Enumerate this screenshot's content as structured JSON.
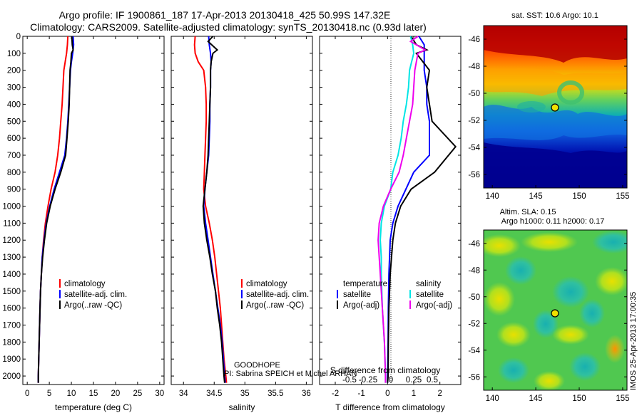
{
  "titles": {
    "line1": "Argo profile: IF 1900861_187 17-Apr-2013 20130418_425 50.99S 147.32E",
    "line2": "Climatology: CARS2009. Satellite-adjusted climatology: synTS_20130418.nc (0.93d later)"
  },
  "depth_ticks": [
    0,
    100,
    200,
    300,
    400,
    500,
    600,
    700,
    800,
    900,
    1000,
    1100,
    1200,
    1300,
    1400,
    1500,
    1600,
    1700,
    1800,
    1900,
    2000
  ],
  "panels": {
    "temperature": {
      "xlabel": "temperature (deg C)",
      "xticks": [
        0,
        5,
        10,
        15,
        20,
        25,
        30
      ],
      "legend": [
        "climatology",
        "satellite-adj. clim.",
        "Argo(..raw -QC)"
      ]
    },
    "salinity": {
      "xlabel": "salinity",
      "xticks": [
        "34",
        "34.5",
        "35",
        "35.5",
        "36"
      ],
      "legend": [
        "climatology",
        "satellite-adj. clim.",
        "Argo(..raw -QC)"
      ],
      "note1": "GOODHOPE",
      "note2": "PI: Sabrina SPEICH et Michel ARHAN"
    },
    "difference": {
      "xlabel": "T difference from climatology",
      "xticks": [
        "-2",
        "-1",
        "0",
        "1",
        "2"
      ],
      "xlabel_s": "S difference from climatology",
      "xticks_s": [
        "-0.5",
        "-0.25",
        "0",
        "0.25",
        "0.5"
      ],
      "legend_temp_header": "temperature",
      "legend_temp": [
        "satellite",
        "Argo(-adj)"
      ],
      "legend_sal_header": "salinity",
      "legend_sal": [
        "satellite",
        "Argo(-adj)"
      ]
    }
  },
  "maps": {
    "sst_title": "sat. SST: 10.6 Argo: 10.1",
    "sla_title1": "Altim. SLA: 0.15",
    "sla_title2": "Argo h1000: 0.11 h2000: 0.17",
    "lat_ticks": [
      "-46",
      "-48",
      "-50",
      "-52",
      "-54",
      "-56"
    ],
    "lon_ticks": [
      "140",
      "145",
      "150",
      "155"
    ],
    "marker": {
      "lon": 147.32,
      "lat": -50.99
    }
  },
  "stamp": "IMOS 25-Apr-2013 17:00:35",
  "colors": {
    "climatology": "#ff0000",
    "satellite": "#0000ff",
    "argo": "#000000",
    "sal_satellite": "#00e5e5",
    "sal_argo": "#ee00ee"
  },
  "chart_data": [
    {
      "type": "line",
      "xlabel": "temperature (deg C)",
      "ylabel": "",
      "xlim": [
        -1,
        31
      ],
      "ylim": [
        2050,
        0
      ],
      "series": [
        {
          "name": "climatology",
          "points": [
            [
              9.2,
              0
            ],
            [
              9.1,
              50
            ],
            [
              8.9,
              100
            ],
            [
              8.6,
              150
            ],
            [
              8.3,
              200
            ],
            [
              8.1,
              300
            ],
            [
              7.9,
              400
            ],
            [
              7.6,
              500
            ],
            [
              7.3,
              600
            ],
            [
              6.9,
              700
            ],
            [
              6.3,
              800
            ],
            [
              5.4,
              900
            ],
            [
              4.7,
              1000
            ],
            [
              4.1,
              1100
            ],
            [
              3.7,
              1200
            ],
            [
              3.4,
              1300
            ],
            [
              3.2,
              1400
            ],
            [
              3.0,
              1500
            ],
            [
              2.9,
              1600
            ],
            [
              2.8,
              1700
            ],
            [
              2.7,
              1800
            ],
            [
              2.6,
              1900
            ],
            [
              2.5,
              2000
            ],
            [
              2.5,
              2040
            ]
          ]
        },
        {
          "name": "satellite-adj. clim.",
          "points": [
            [
              10.4,
              0
            ],
            [
              10.5,
              50
            ],
            [
              10.3,
              100
            ],
            [
              10.0,
              150
            ],
            [
              9.8,
              200
            ],
            [
              9.6,
              300
            ],
            [
              9.4,
              400
            ],
            [
              9.2,
              500
            ],
            [
              8.9,
              600
            ],
            [
              8.5,
              700
            ],
            [
              7.3,
              800
            ],
            [
              6.1,
              900
            ],
            [
              5.1,
              1000
            ],
            [
              4.3,
              1100
            ],
            [
              3.8,
              1200
            ],
            [
              3.4,
              1300
            ],
            [
              3.2,
              1400
            ],
            [
              3.0,
              1500
            ],
            [
              2.9,
              1600
            ],
            [
              2.8,
              1700
            ],
            [
              2.7,
              1800
            ],
            [
              2.6,
              1900
            ],
            [
              2.5,
              2000
            ],
            [
              2.5,
              2040
            ]
          ]
        },
        {
          "name": "Argo(..raw -QC)",
          "points": [
            [
              10.1,
              0
            ],
            [
              10.2,
              50
            ],
            [
              10.4,
              80
            ],
            [
              10.0,
              100
            ],
            [
              9.9,
              150
            ],
            [
              9.7,
              200
            ],
            [
              9.6,
              300
            ],
            [
              9.5,
              400
            ],
            [
              9.3,
              500
            ],
            [
              9.0,
              600
            ],
            [
              8.7,
              700
            ],
            [
              7.6,
              800
            ],
            [
              6.3,
              900
            ],
            [
              5.2,
              1000
            ],
            [
              4.4,
              1100
            ],
            [
              3.9,
              1200
            ],
            [
              3.5,
              1300
            ],
            [
              3.2,
              1400
            ],
            [
              3.0,
              1500
            ],
            [
              2.9,
              1600
            ],
            [
              2.8,
              1700
            ],
            [
              2.7,
              1800
            ],
            [
              2.6,
              1900
            ],
            [
              2.5,
              2000
            ],
            [
              2.5,
              2040
            ]
          ]
        }
      ]
    },
    {
      "type": "line",
      "xlabel": "salinity",
      "ylabel": "",
      "xlim": [
        33.8,
        36.1
      ],
      "ylim": [
        2050,
        0
      ],
      "series": [
        {
          "name": "climatology",
          "points": [
            [
              34.19,
              0
            ],
            [
              34.18,
              50
            ],
            [
              34.19,
              100
            ],
            [
              34.24,
              150
            ],
            [
              34.33,
              200
            ],
            [
              34.36,
              300
            ],
            [
              34.37,
              400
            ],
            [
              34.37,
              500
            ],
            [
              34.36,
              600
            ],
            [
              34.35,
              700
            ],
            [
              34.34,
              800
            ],
            [
              34.33,
              900
            ],
            [
              34.36,
              1000
            ],
            [
              34.42,
              1100
            ],
            [
              34.47,
              1200
            ],
            [
              34.51,
              1300
            ],
            [
              34.54,
              1400
            ],
            [
              34.57,
              1500
            ],
            [
              34.6,
              1600
            ],
            [
              34.62,
              1700
            ],
            [
              34.64,
              1800
            ],
            [
              34.66,
              1900
            ],
            [
              34.69,
              2000
            ],
            [
              34.7,
              2040
            ]
          ]
        },
        {
          "name": "satellite-adj. clim.",
          "points": [
            [
              34.41,
              0
            ],
            [
              34.42,
              50
            ],
            [
              34.44,
              100
            ],
            [
              34.45,
              150
            ],
            [
              34.44,
              200
            ],
            [
              34.44,
              300
            ],
            [
              34.43,
              400
            ],
            [
              34.43,
              500
            ],
            [
              34.42,
              600
            ],
            [
              34.41,
              700
            ],
            [
              34.38,
              800
            ],
            [
              34.35,
              900
            ],
            [
              34.33,
              1000
            ],
            [
              34.36,
              1100
            ],
            [
              34.4,
              1200
            ],
            [
              34.44,
              1300
            ],
            [
              34.48,
              1400
            ],
            [
              34.52,
              1500
            ],
            [
              34.56,
              1600
            ],
            [
              34.6,
              1700
            ],
            [
              34.63,
              1800
            ],
            [
              34.65,
              1900
            ],
            [
              34.67,
              2000
            ],
            [
              34.68,
              2040
            ]
          ]
        },
        {
          "name": "Argo(..raw -QC)",
          "points": [
            [
              34.48,
              0
            ],
            [
              34.4,
              30
            ],
            [
              34.55,
              80
            ],
            [
              34.48,
              100
            ],
            [
              34.45,
              150
            ],
            [
              34.44,
              200
            ],
            [
              34.44,
              300
            ],
            [
              34.43,
              400
            ],
            [
              34.42,
              500
            ],
            [
              34.41,
              600
            ],
            [
              34.4,
              700
            ],
            [
              34.38,
              800
            ],
            [
              34.35,
              900
            ],
            [
              34.32,
              1000
            ],
            [
              34.34,
              1100
            ],
            [
              34.38,
              1200
            ],
            [
              34.43,
              1300
            ],
            [
              34.47,
              1400
            ],
            [
              34.52,
              1500
            ],
            [
              34.55,
              1600
            ],
            [
              34.59,
              1700
            ],
            [
              34.62,
              1800
            ],
            [
              34.64,
              1900
            ],
            [
              34.66,
              2000
            ],
            [
              34.67,
              2040
            ]
          ]
        }
      ]
    },
    {
      "type": "line",
      "xlabel": "T difference from climatology",
      "ylabel": "",
      "xlim": [
        -2.6,
        2.8
      ],
      "ylim": [
        2050,
        0
      ],
      "series": [
        {
          "name": "temperature satellite",
          "points": [
            [
              1.2,
              0
            ],
            [
              1.4,
              50
            ],
            [
              1.4,
              100
            ],
            [
              1.4,
              200
            ],
            [
              1.5,
              300
            ],
            [
              1.5,
              400
            ],
            [
              1.6,
              500
            ],
            [
              1.6,
              600
            ],
            [
              1.6,
              700
            ],
            [
              1.0,
              800
            ],
            [
              0.7,
              900
            ],
            [
              0.4,
              1000
            ],
            [
              0.2,
              1100
            ],
            [
              0.1,
              1200
            ],
            [
              0.05,
              1400
            ],
            [
              0.03,
              1600
            ],
            [
              0.02,
              1800
            ],
            [
              0.0,
              2000
            ],
            [
              0.0,
              2040
            ]
          ]
        },
        {
          "name": "temperature Argo(-adj)",
          "points": [
            [
              0.9,
              0
            ],
            [
              1.1,
              50
            ],
            [
              1.5,
              80
            ],
            [
              1.1,
              100
            ],
            [
              1.6,
              200
            ],
            [
              1.5,
              300
            ],
            [
              1.6,
              400
            ],
            [
              1.7,
              500
            ],
            [
              2.6,
              650
            ],
            [
              1.8,
              800
            ],
            [
              0.9,
              900
            ],
            [
              0.5,
              1000
            ],
            [
              0.3,
              1100
            ],
            [
              0.2,
              1200
            ],
            [
              0.1,
              1400
            ],
            [
              0.05,
              1600
            ],
            [
              0.03,
              1800
            ],
            [
              0.02,
              2000
            ],
            [
              0.0,
              2040
            ]
          ]
        },
        {
          "name": "salinity satellite",
          "points": [
            [
              0.22,
              0
            ],
            [
              0.24,
              50
            ],
            [
              0.25,
              100
            ],
            [
              0.21,
              200
            ],
            [
              0.2,
              300
            ],
            [
              0.18,
              400
            ],
            [
              0.15,
              500
            ],
            [
              0.13,
              600
            ],
            [
              0.1,
              700
            ],
            [
              0.05,
              800
            ],
            [
              0.03,
              900
            ],
            [
              -0.03,
              1000
            ],
            [
              -0.06,
              1100
            ],
            [
              -0.07,
              1200
            ],
            [
              -0.06,
              1300
            ],
            [
              -0.06,
              1400
            ],
            [
              -0.05,
              1600
            ],
            [
              -0.03,
              1800
            ],
            [
              -0.02,
              2000
            ],
            [
              -0.02,
              2040
            ]
          ]
        },
        {
          "name": "salinity Argo(-adj)",
          "points": [
            [
              0.29,
              0
            ],
            [
              0.22,
              30
            ],
            [
              0.36,
              80
            ],
            [
              0.29,
              100
            ],
            [
              0.26,
              200
            ],
            [
              0.25,
              300
            ],
            [
              0.24,
              400
            ],
            [
              0.21,
              500
            ],
            [
              0.18,
              600
            ],
            [
              0.15,
              700
            ],
            [
              0.11,
              800
            ],
            [
              0.03,
              900
            ],
            [
              -0.04,
              1000
            ],
            [
              -0.08,
              1100
            ],
            [
              -0.09,
              1200
            ],
            [
              -0.08,
              1300
            ],
            [
              -0.07,
              1400
            ],
            [
              -0.05,
              1600
            ],
            [
              -0.03,
              1800
            ],
            [
              -0.02,
              2000
            ],
            [
              -0.02,
              2040
            ]
          ]
        }
      ]
    }
  ]
}
